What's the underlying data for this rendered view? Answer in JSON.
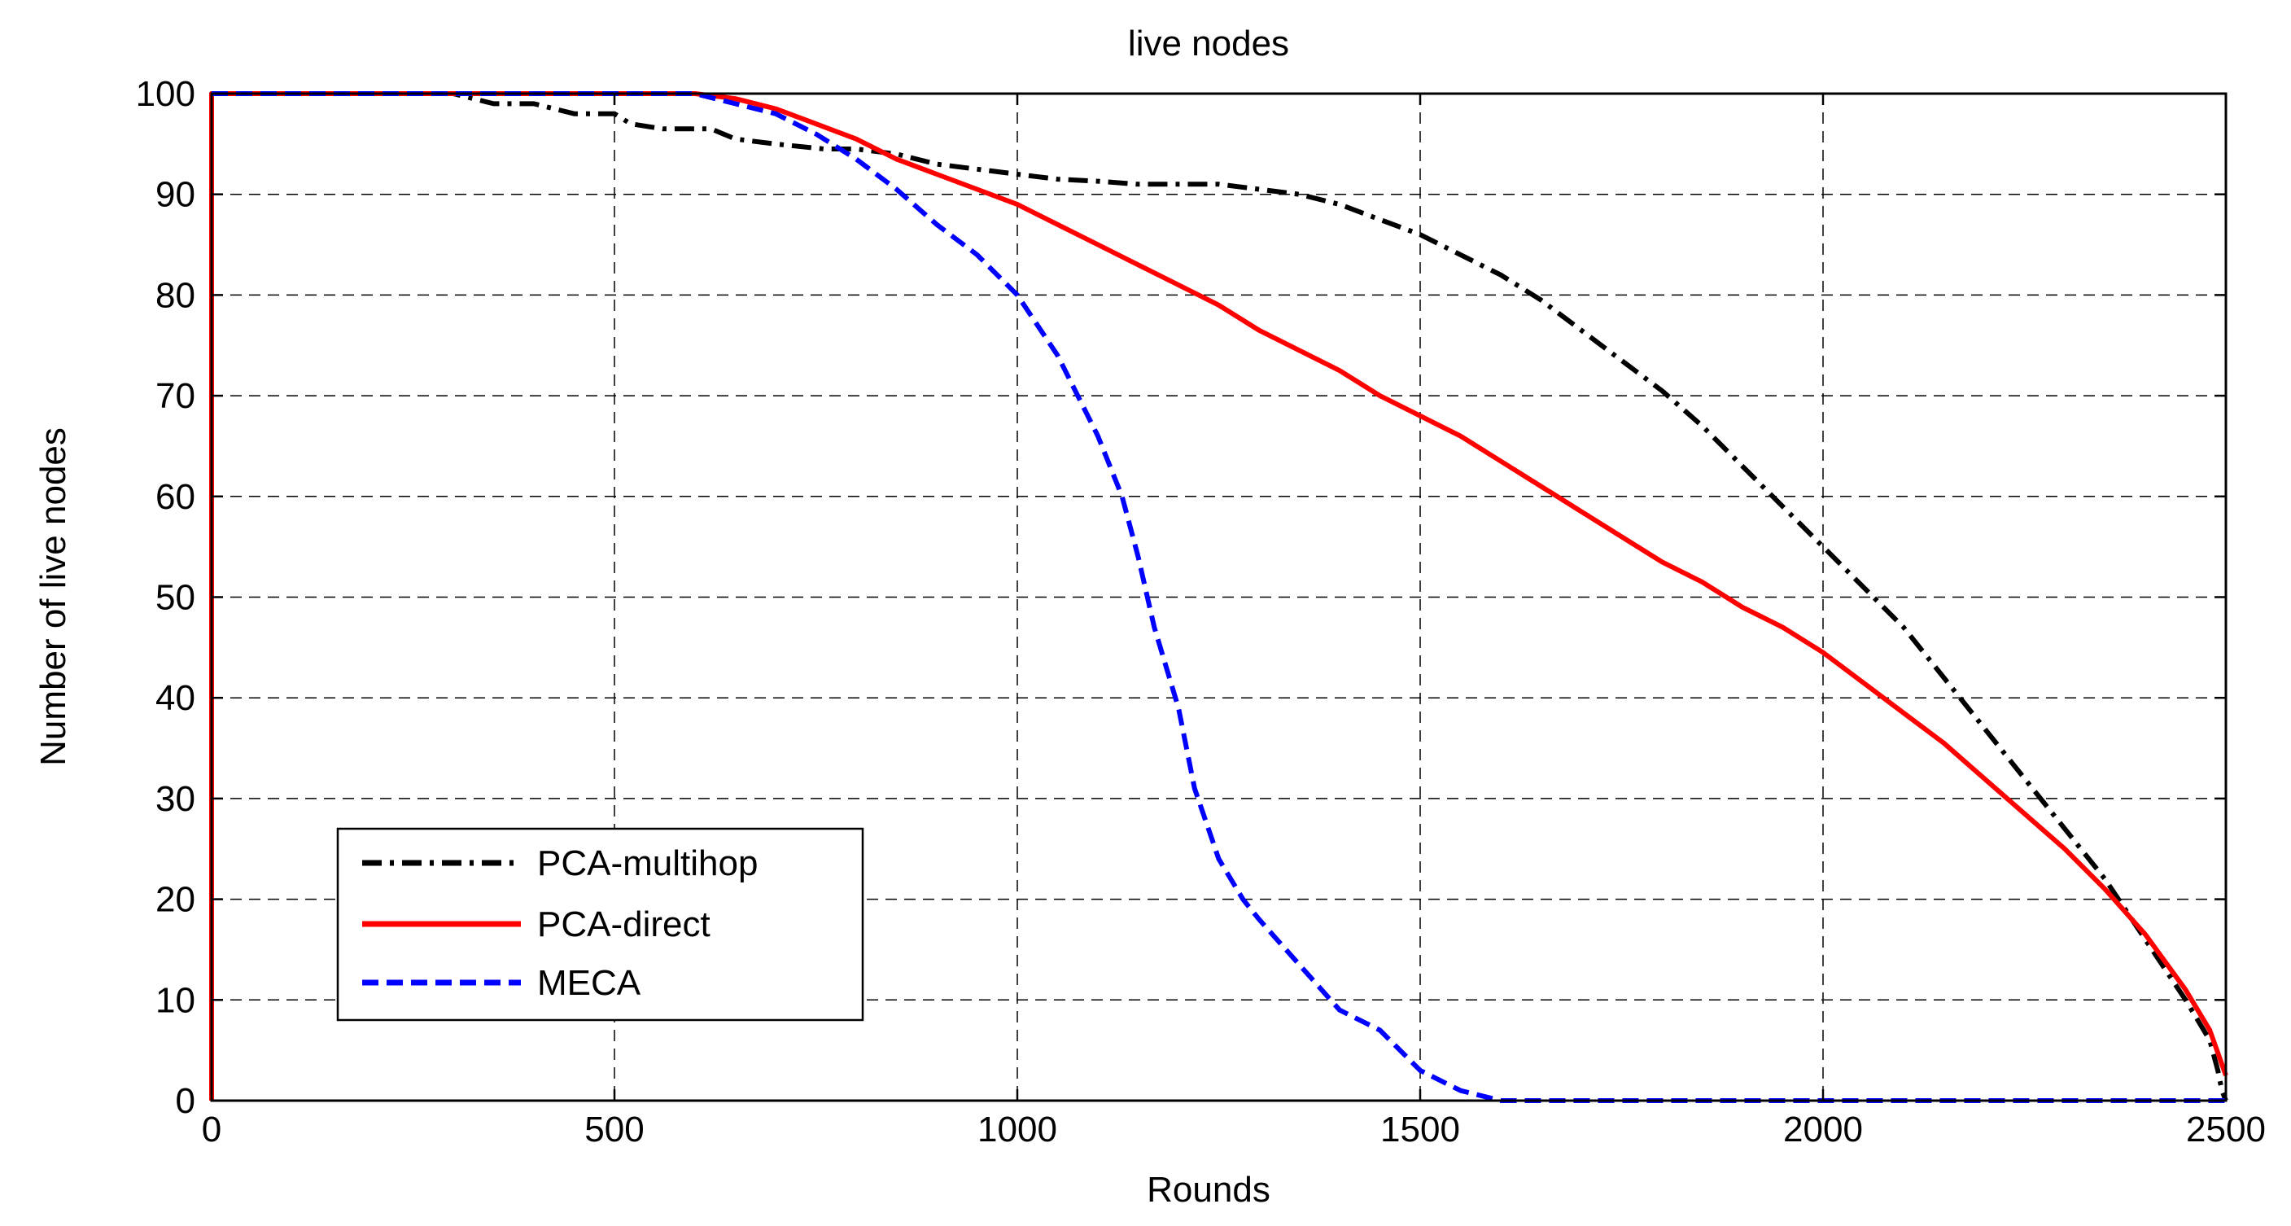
{
  "colors": {
    "background": "#ffffff",
    "axes": "#000000",
    "grid": "#000000",
    "pca_multihop": "#000000",
    "pca_direct": "#ff0000",
    "meca": "#0000ff"
  },
  "chart_data": {
    "type": "line",
    "title": "live nodes",
    "xlabel": "Rounds",
    "ylabel": "Number of live nodes",
    "xlim": [
      0,
      2500
    ],
    "ylim": [
      0,
      100
    ],
    "xticks": [
      0,
      500,
      1000,
      1500,
      2000,
      2500
    ],
    "yticks": [
      0,
      10,
      20,
      30,
      40,
      50,
      60,
      70,
      80,
      90,
      100
    ],
    "xtick_labels": [
      "0",
      "500",
      "1000",
      "1500",
      "2000",
      "2500"
    ],
    "ytick_labels": [
      "0",
      "10",
      "20",
      "30",
      "40",
      "50",
      "60",
      "70",
      "80",
      "90",
      "100"
    ],
    "grid": true,
    "legend_position": "lower-left",
    "series": [
      {
        "name": "PCA-multihop",
        "color": "#000000",
        "style": "dash-dot",
        "x": [
          0,
          0,
          300,
          350,
          400,
          450,
          500,
          520,
          560,
          620,
          650,
          700,
          760,
          800,
          850,
          900,
          950,
          1000,
          1050,
          1100,
          1150,
          1200,
          1250,
          1300,
          1350,
          1400,
          1450,
          1500,
          1550,
          1600,
          1650,
          1700,
          1750,
          1800,
          1850,
          1900,
          1950,
          2000,
          2050,
          2100,
          2150,
          2200,
          2250,
          2300,
          2350,
          2400,
          2450,
          2480,
          2490,
          2495,
          2500
        ],
        "y": [
          0,
          100,
          100,
          99,
          99,
          98,
          98,
          97,
          96.5,
          96.5,
          95.5,
          95,
          94.5,
          94.5,
          94,
          93,
          92.5,
          92,
          91.5,
          91.3,
          91,
          91,
          91,
          90.5,
          90,
          89,
          87.5,
          86,
          84,
          82,
          79.5,
          76.5,
          73.5,
          70.5,
          67,
          63,
          59,
          55,
          51,
          47,
          42,
          37,
          32,
          27,
          22,
          16,
          10,
          6,
          3,
          1,
          0
        ]
      },
      {
        "name": "PCA-direct",
        "color": "#ff0000",
        "style": "solid",
        "x": [
          0,
          0,
          600,
          650,
          700,
          750,
          800,
          850,
          900,
          950,
          1000,
          1050,
          1100,
          1150,
          1200,
          1250,
          1300,
          1350,
          1400,
          1450,
          1500,
          1550,
          1600,
          1650,
          1700,
          1750,
          1800,
          1850,
          1900,
          1950,
          2000,
          2050,
          2100,
          2150,
          2200,
          2250,
          2300,
          2350,
          2400,
          2450,
          2480,
          2500
        ],
        "y": [
          0,
          100,
          100,
          99.5,
          98.5,
          97,
          95.5,
          93.5,
          92,
          90.5,
          89,
          87,
          85,
          83,
          81,
          79,
          76.5,
          74.5,
          72.5,
          70,
          68,
          66,
          63.5,
          61,
          58.5,
          56,
          53.5,
          51.5,
          49,
          47,
          44.5,
          41.5,
          38.5,
          35.5,
          32,
          28.5,
          25,
          21,
          16.5,
          11,
          7,
          2.5
        ]
      },
      {
        "name": "MECA",
        "color": "#0000ff",
        "style": "dashed",
        "x": [
          0,
          600,
          650,
          700,
          750,
          800,
          850,
          900,
          950,
          1000,
          1050,
          1100,
          1130,
          1150,
          1170,
          1200,
          1220,
          1250,
          1280,
          1300,
          1350,
          1400,
          1450,
          1500,
          1550,
          1600,
          1650,
          1700,
          1750,
          2500
        ],
        "y": [
          100,
          100,
          99,
          98,
          96,
          93.5,
          90.5,
          87,
          84,
          80,
          74,
          66,
          60,
          54,
          47,
          39,
          31,
          24,
          20,
          18,
          13.5,
          9,
          7,
          3,
          1,
          0,
          0,
          0,
          0,
          0
        ]
      }
    ]
  }
}
